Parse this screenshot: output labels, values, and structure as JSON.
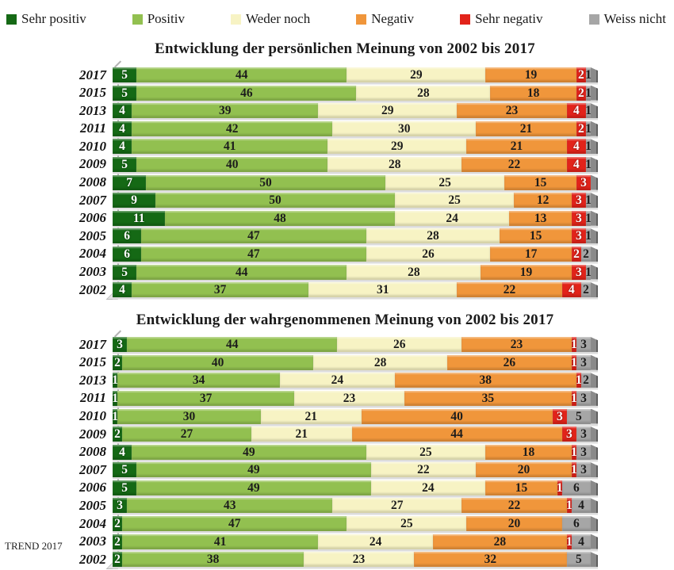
{
  "legend": {
    "items": [
      {
        "label": "Sehr positiv",
        "color": "#156915",
        "label_color": "#ffffff"
      },
      {
        "label": "Positiv",
        "color": "#92C050",
        "label_color": "#1c1c1c"
      },
      {
        "label": "Weder noch",
        "color": "#F7F3C4",
        "label_color": "#1c1c1c"
      },
      {
        "label": "Negativ",
        "color": "#F0963B",
        "label_color": "#1c1c1c"
      },
      {
        "label": "Sehr negativ",
        "color": "#E2231A",
        "label_color": "#ffffff"
      },
      {
        "label": "Weiss nicht",
        "color": "#A6A6A6",
        "label_color": "#1c1c1c"
      }
    ]
  },
  "footer": {
    "source": "TREND 2017"
  },
  "chart_data": [
    {
      "type": "bar",
      "stacked": true,
      "orientation": "horizontal",
      "title": "Entwicklung der persönlichen Meinung von 2002 bis 2017",
      "xlim": [
        0,
        100
      ],
      "unit": "percent",
      "categories": [
        "2017",
        "2015",
        "2013",
        "2011",
        "2010",
        "2009",
        "2008",
        "2007",
        "2006",
        "2005",
        "2004",
        "2003",
        "2002"
      ],
      "series": [
        {
          "name": "Sehr positiv",
          "color": "#156915",
          "label_color": "#ffffff",
          "values": [
            5,
            5,
            4,
            4,
            4,
            5,
            7,
            9,
            11,
            6,
            6,
            5,
            4
          ]
        },
        {
          "name": "Positiv",
          "color": "#92C050",
          "label_color": "#1c1c1c",
          "values": [
            44,
            46,
            39,
            42,
            41,
            40,
            50,
            50,
            48,
            47,
            47,
            44,
            37
          ]
        },
        {
          "name": "Weder noch",
          "color": "#F7F3C4",
          "label_color": "#1c1c1c",
          "values": [
            29,
            28,
            29,
            30,
            29,
            28,
            25,
            25,
            24,
            28,
            26,
            28,
            31
          ]
        },
        {
          "name": "Negativ",
          "color": "#F0963B",
          "label_color": "#1c1c1c",
          "values": [
            19,
            18,
            23,
            21,
            21,
            22,
            15,
            12,
            13,
            15,
            17,
            19,
            22
          ]
        },
        {
          "name": "Sehr negativ",
          "color": "#E2231A",
          "label_color": "#ffffff",
          "values": [
            2,
            2,
            4,
            2,
            4,
            4,
            3,
            3,
            3,
            3,
            2,
            3,
            4
          ]
        },
        {
          "name": "Weiss nicht",
          "color": "#A6A6A6",
          "label_color": "#1c1c1c",
          "values": [
            1,
            1,
            1,
            1,
            1,
            1,
            0,
            1,
            1,
            1,
            2,
            1,
            2
          ]
        }
      ]
    },
    {
      "type": "bar",
      "stacked": true,
      "orientation": "horizontal",
      "title": "Entwicklung der wahrgenommenen Meinung von 2002 bis 2017",
      "xlim": [
        0,
        100
      ],
      "unit": "percent",
      "categories": [
        "2017",
        "2015",
        "2013",
        "2011",
        "2010",
        "2009",
        "2008",
        "2007",
        "2006",
        "2005",
        "2004",
        "2003",
        "2002"
      ],
      "series": [
        {
          "name": "Sehr positiv",
          "color": "#156915",
          "label_color": "#ffffff",
          "values": [
            3,
            2,
            1,
            1,
            1,
            2,
            4,
            5,
            5,
            3,
            2,
            2,
            2
          ]
        },
        {
          "name": "Positiv",
          "color": "#92C050",
          "label_color": "#1c1c1c",
          "values": [
            44,
            40,
            34,
            37,
            30,
            27,
            49,
            49,
            49,
            43,
            47,
            41,
            38
          ]
        },
        {
          "name": "Weder noch",
          "color": "#F7F3C4",
          "label_color": "#1c1c1c",
          "values": [
            26,
            28,
            24,
            23,
            21,
            21,
            25,
            22,
            24,
            27,
            25,
            24,
            23
          ]
        },
        {
          "name": "Negativ",
          "color": "#F0963B",
          "label_color": "#1c1c1c",
          "values": [
            23,
            26,
            38,
            35,
            40,
            44,
            18,
            20,
            15,
            22,
            20,
            28,
            32
          ]
        },
        {
          "name": "Sehr negativ",
          "color": "#E2231A",
          "label_color": "#ffffff",
          "values": [
            1,
            1,
            1,
            1,
            3,
            3,
            1,
            1,
            1,
            1,
            0,
            1,
            0
          ]
        },
        {
          "name": "Weiss nicht",
          "color": "#A6A6A6",
          "label_color": "#1c1c1c",
          "values": [
            3,
            3,
            2,
            3,
            5,
            3,
            3,
            3,
            6,
            4,
            6,
            4,
            5
          ]
        }
      ]
    }
  ]
}
